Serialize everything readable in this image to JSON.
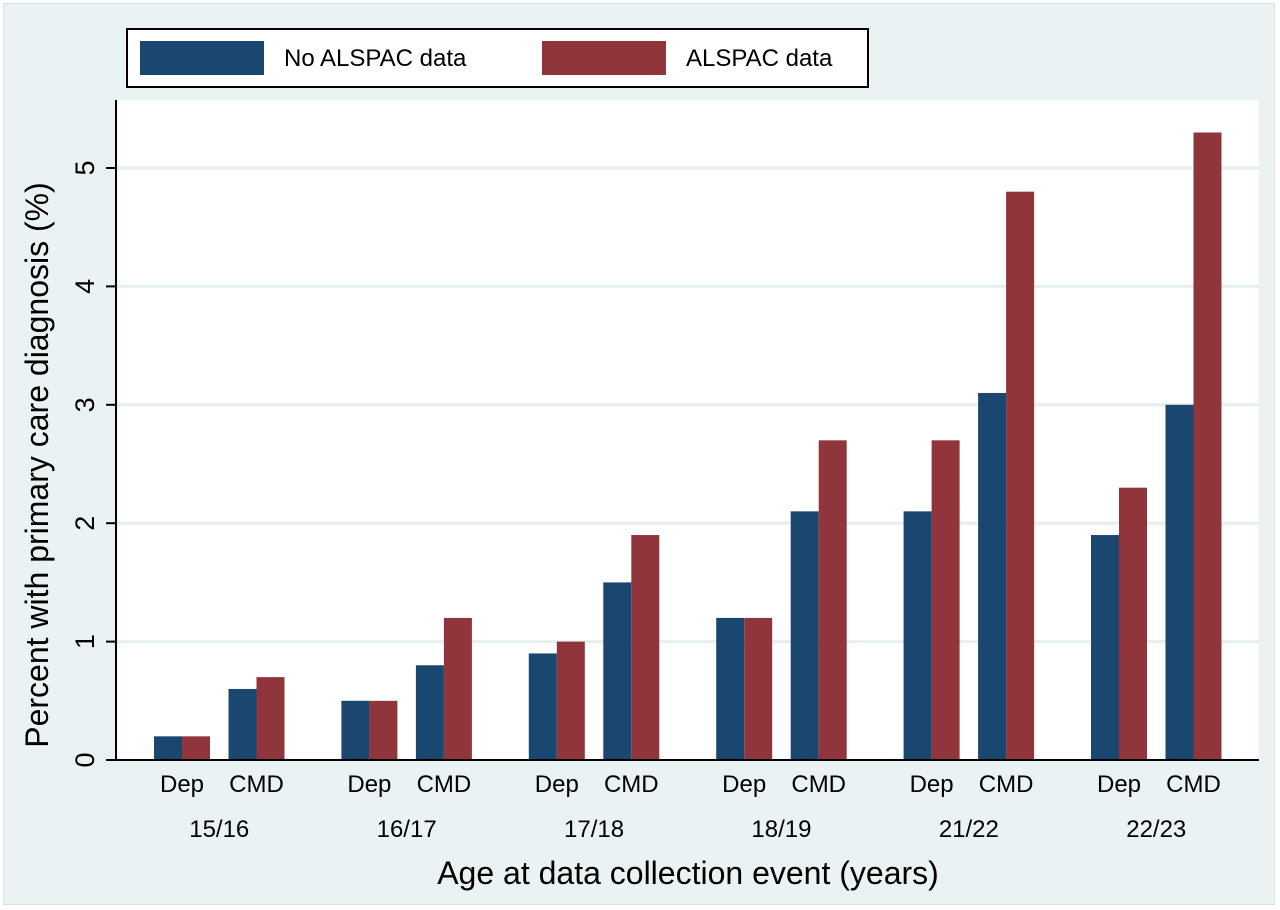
{
  "chart_data": {
    "type": "bar",
    "xlabel": "Age at data collection event (years)",
    "ylabel": "Percent with primary care diagnosis (%)",
    "ylim": [
      0,
      5.5
    ],
    "yticks": [
      0,
      1,
      2,
      3,
      4,
      5
    ],
    "grid": true,
    "legend_position": "top-left",
    "groups": [
      "15/16",
      "16/17",
      "17/18",
      "18/19",
      "21/22",
      "22/23"
    ],
    "subcategories": [
      "Dep",
      "CMD"
    ],
    "series": [
      {
        "name": "No ALSPAC data",
        "color": "#1a476f",
        "values": [
          [
            0.2,
            0.6
          ],
          [
            0.5,
            0.8
          ],
          [
            0.9,
            1.5
          ],
          [
            1.2,
            2.1
          ],
          [
            2.1,
            3.1
          ],
          [
            1.9,
            3.0
          ]
        ]
      },
      {
        "name": "ALSPAC data",
        "color": "#90353b",
        "values": [
          [
            0.2,
            0.7
          ],
          [
            0.5,
            1.2
          ],
          [
            1.0,
            1.9
          ],
          [
            1.2,
            2.7
          ],
          [
            2.7,
            4.8
          ],
          [
            2.3,
            5.3
          ]
        ]
      }
    ]
  }
}
